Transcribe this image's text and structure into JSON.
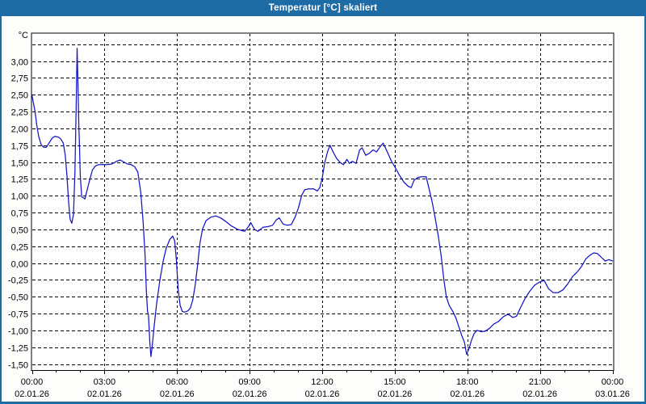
{
  "window": {
    "title": "Temperatur [°C] skaliert",
    "titlebar_color": "#1e6ca6",
    "border_color": "#1e6ca6",
    "background_color": "#fdfefb",
    "plot_background_color": "#ffffff",
    "frame_color": "#000000",
    "text_color": "#000000"
  },
  "chart_data": {
    "type": "line",
    "title": "Temperatur [°C] skaliert",
    "y_unit_label": "°C",
    "grid": {
      "style": "dashed",
      "color": "#000000",
      "horizontal_dash": "4 3",
      "vertical_dash": "3 3"
    },
    "x_axis": {
      "range_hours": [
        0,
        24
      ],
      "minor_tick_interval_hours": 1,
      "major_ticks": [
        {
          "hour": 0,
          "time": "00:00",
          "date": "02.01.26"
        },
        {
          "hour": 3,
          "time": "03:00",
          "date": "02.01.26"
        },
        {
          "hour": 6,
          "time": "06:00",
          "date": "02.01.26"
        },
        {
          "hour": 9,
          "time": "09:00",
          "date": "02.01.26"
        },
        {
          "hour": 12,
          "time": "12:00",
          "date": "02.01.26"
        },
        {
          "hour": 15,
          "time": "15:00",
          "date": "02.01.26"
        },
        {
          "hour": 18,
          "time": "18:00",
          "date": "02.01.26"
        },
        {
          "hour": 21,
          "time": "21:00",
          "date": "02.01.26"
        },
        {
          "hour": 24,
          "time": "00:00",
          "date": "03.01.26"
        }
      ]
    },
    "y_axis": {
      "range": [
        -1.62,
        3.42
      ],
      "ticks": [
        {
          "value": 3.25,
          "label": ""
        },
        {
          "value": 3.0,
          "label": "3,00"
        },
        {
          "value": 2.75,
          "label": "2,75"
        },
        {
          "value": 2.5,
          "label": "2,50"
        },
        {
          "value": 2.25,
          "label": "2,25"
        },
        {
          "value": 2.0,
          "label": "2,00"
        },
        {
          "value": 1.75,
          "label": "1,75"
        },
        {
          "value": 1.5,
          "label": "1,50"
        },
        {
          "value": 1.25,
          "label": "1,25"
        },
        {
          "value": 1.0,
          "label": "1,00"
        },
        {
          "value": 0.75,
          "label": "0,75"
        },
        {
          "value": 0.5,
          "label": "0,50"
        },
        {
          "value": 0.25,
          "label": "0,25"
        },
        {
          "value": 0.0,
          "label": "0,00"
        },
        {
          "value": -0.25,
          "label": "-0,25"
        },
        {
          "value": -0.5,
          "label": "-0,50"
        },
        {
          "value": -0.75,
          "label": "-0,75"
        },
        {
          "value": -1.0,
          "label": "-1,00"
        },
        {
          "value": -1.25,
          "label": "-1,25"
        },
        {
          "value": -1.5,
          "label": "-1,50"
        }
      ]
    },
    "series": [
      {
        "name": "Temperatur",
        "color": "#1414c8",
        "points": [
          [
            0.0,
            2.5
          ],
          [
            0.05,
            2.4
          ],
          [
            0.13,
            2.25
          ],
          [
            0.2,
            2.05
          ],
          [
            0.28,
            1.88
          ],
          [
            0.38,
            1.76
          ],
          [
            0.48,
            1.72
          ],
          [
            0.6,
            1.72
          ],
          [
            0.72,
            1.79
          ],
          [
            0.85,
            1.86
          ],
          [
            0.95,
            1.88
          ],
          [
            1.1,
            1.87
          ],
          [
            1.2,
            1.84
          ],
          [
            1.3,
            1.78
          ],
          [
            1.38,
            1.6
          ],
          [
            1.45,
            1.3
          ],
          [
            1.52,
            0.9
          ],
          [
            1.58,
            0.65
          ],
          [
            1.65,
            0.59
          ],
          [
            1.72,
            0.72
          ],
          [
            1.78,
            1.35
          ],
          [
            1.83,
            2.3
          ],
          [
            1.87,
            3.19
          ],
          [
            1.9,
            2.75
          ],
          [
            1.94,
            2.05
          ],
          [
            1.97,
            1.72
          ],
          [
            2.0,
            1.3
          ],
          [
            2.06,
            0.98
          ],
          [
            2.13,
            0.97
          ],
          [
            2.19,
            0.95
          ],
          [
            2.28,
            1.08
          ],
          [
            2.38,
            1.22
          ],
          [
            2.5,
            1.38
          ],
          [
            2.62,
            1.44
          ],
          [
            2.75,
            1.46
          ],
          [
            2.9,
            1.46
          ],
          [
            3.1,
            1.46
          ],
          [
            3.3,
            1.47
          ],
          [
            3.5,
            1.51
          ],
          [
            3.65,
            1.53
          ],
          [
            3.8,
            1.5
          ],
          [
            3.95,
            1.47
          ],
          [
            4.1,
            1.46
          ],
          [
            4.25,
            1.43
          ],
          [
            4.38,
            1.35
          ],
          [
            4.5,
            1.05
          ],
          [
            4.6,
            0.6
          ],
          [
            4.68,
            0.1
          ],
          [
            4.73,
            -0.4
          ],
          [
            4.78,
            -0.72
          ],
          [
            4.82,
            -0.78
          ],
          [
            4.87,
            -1.15
          ],
          [
            4.92,
            -1.39
          ],
          [
            4.97,
            -1.25
          ],
          [
            5.05,
            -0.95
          ],
          [
            5.15,
            -0.62
          ],
          [
            5.28,
            -0.28
          ],
          [
            5.42,
            0.02
          ],
          [
            5.55,
            0.22
          ],
          [
            5.7,
            0.35
          ],
          [
            5.82,
            0.4
          ],
          [
            5.9,
            0.33
          ],
          [
            5.97,
            0.05
          ],
          [
            6.05,
            -0.4
          ],
          [
            6.13,
            -0.63
          ],
          [
            6.22,
            -0.72
          ],
          [
            6.32,
            -0.73
          ],
          [
            6.45,
            -0.71
          ],
          [
            6.55,
            -0.67
          ],
          [
            6.65,
            -0.55
          ],
          [
            6.75,
            -0.33
          ],
          [
            6.85,
            -0.03
          ],
          [
            6.95,
            0.3
          ],
          [
            7.05,
            0.5
          ],
          [
            7.2,
            0.63
          ],
          [
            7.4,
            0.68
          ],
          [
            7.6,
            0.7
          ],
          [
            7.8,
            0.67
          ],
          [
            8.0,
            0.62
          ],
          [
            8.25,
            0.55
          ],
          [
            8.5,
            0.5
          ],
          [
            8.7,
            0.48
          ],
          [
            8.8,
            0.47
          ],
          [
            8.95,
            0.54
          ],
          [
            9.05,
            0.6
          ],
          [
            9.2,
            0.5
          ],
          [
            9.35,
            0.47
          ],
          [
            9.55,
            0.53
          ],
          [
            9.75,
            0.54
          ],
          [
            9.95,
            0.56
          ],
          [
            10.1,
            0.64
          ],
          [
            10.22,
            0.67
          ],
          [
            10.38,
            0.58
          ],
          [
            10.55,
            0.56
          ],
          [
            10.72,
            0.57
          ],
          [
            10.88,
            0.68
          ],
          [
            11.02,
            0.82
          ],
          [
            11.15,
            1.0
          ],
          [
            11.28,
            1.09
          ],
          [
            11.45,
            1.1
          ],
          [
            11.65,
            1.1
          ],
          [
            11.8,
            1.07
          ],
          [
            11.9,
            1.12
          ],
          [
            12.0,
            1.26
          ],
          [
            12.1,
            1.48
          ],
          [
            12.22,
            1.65
          ],
          [
            12.32,
            1.75
          ],
          [
            12.45,
            1.65
          ],
          [
            12.6,
            1.55
          ],
          [
            12.75,
            1.49
          ],
          [
            12.88,
            1.46
          ],
          [
            13.02,
            1.54
          ],
          [
            13.12,
            1.48
          ],
          [
            13.25,
            1.51
          ],
          [
            13.4,
            1.48
          ],
          [
            13.55,
            1.68
          ],
          [
            13.65,
            1.71
          ],
          [
            13.8,
            1.6
          ],
          [
            13.95,
            1.63
          ],
          [
            14.1,
            1.68
          ],
          [
            14.25,
            1.65
          ],
          [
            14.4,
            1.73
          ],
          [
            14.52,
            1.78
          ],
          [
            14.68,
            1.66
          ],
          [
            14.85,
            1.52
          ],
          [
            15.0,
            1.43
          ],
          [
            15.18,
            1.31
          ],
          [
            15.38,
            1.2
          ],
          [
            15.55,
            1.14
          ],
          [
            15.68,
            1.12
          ],
          [
            15.8,
            1.23
          ],
          [
            15.95,
            1.27
          ],
          [
            16.1,
            1.28
          ],
          [
            16.3,
            1.28
          ],
          [
            16.42,
            1.1
          ],
          [
            16.55,
            0.9
          ],
          [
            16.68,
            0.65
          ],
          [
            16.8,
            0.4
          ],
          [
            16.92,
            0.1
          ],
          [
            17.03,
            -0.25
          ],
          [
            17.13,
            -0.5
          ],
          [
            17.25,
            -0.63
          ],
          [
            17.4,
            -0.72
          ],
          [
            17.53,
            -0.82
          ],
          [
            17.65,
            -0.95
          ],
          [
            17.77,
            -1.08
          ],
          [
            17.88,
            -1.18
          ],
          [
            17.97,
            -1.36
          ],
          [
            18.07,
            -1.27
          ],
          [
            18.17,
            -1.15
          ],
          [
            18.28,
            -1.05
          ],
          [
            18.4,
            -1.0
          ],
          [
            18.58,
            -1.02
          ],
          [
            18.75,
            -1.01
          ],
          [
            18.92,
            -0.97
          ],
          [
            19.08,
            -0.91
          ],
          [
            19.28,
            -0.87
          ],
          [
            19.48,
            -0.8
          ],
          [
            19.68,
            -0.76
          ],
          [
            19.88,
            -0.81
          ],
          [
            20.03,
            -0.79
          ],
          [
            20.2,
            -0.66
          ],
          [
            20.38,
            -0.53
          ],
          [
            20.58,
            -0.42
          ],
          [
            20.78,
            -0.33
          ],
          [
            21.0,
            -0.28
          ],
          [
            21.18,
            -0.26
          ],
          [
            21.35,
            -0.38
          ],
          [
            21.55,
            -0.44
          ],
          [
            21.75,
            -0.44
          ],
          [
            21.95,
            -0.4
          ],
          [
            22.15,
            -0.31
          ],
          [
            22.35,
            -0.2
          ],
          [
            22.55,
            -0.13
          ],
          [
            22.72,
            -0.05
          ],
          [
            22.9,
            0.06
          ],
          [
            23.05,
            0.11
          ],
          [
            23.22,
            0.15
          ],
          [
            23.38,
            0.14
          ],
          [
            23.55,
            0.08
          ],
          [
            23.7,
            0.03
          ],
          [
            23.85,
            0.05
          ],
          [
            24.0,
            0.03
          ]
        ]
      }
    ]
  }
}
